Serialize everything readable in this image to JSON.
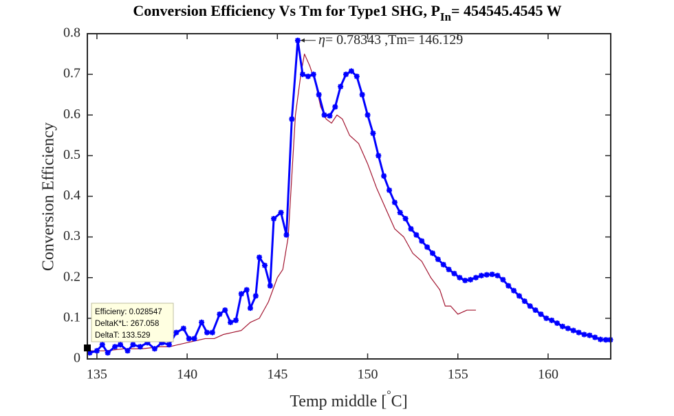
{
  "chart_data": {
    "type": "line",
    "title": "Conversion Efficiency Vs Tm for Type1 SHG, P",
    "title_subscript": "In",
    "title_suffix": "= 454545.4545 W",
    "x_label": "Temp middle [",
    "x_label_superscript": "°",
    "x_label_suffix": "C]",
    "y_label": "Conversion Efficiency",
    "xlim": [
      134.47,
      163.47
    ],
    "xticks": [
      135,
      140,
      145,
      150,
      155,
      160
    ],
    "ylim": [
      0,
      0.8
    ],
    "yticks": [
      0,
      0.1,
      0.2,
      0.3,
      0.4,
      0.5,
      0.6,
      0.7,
      0.8
    ],
    "series": [
      {
        "color": "#0000ff",
        "x": [
          134.6,
          135.0,
          135.3,
          135.6,
          136.0,
          136.3,
          136.7,
          137.0,
          137.4,
          137.8,
          138.2,
          138.6,
          139.0,
          139.4,
          139.8,
          140.1,
          140.4,
          140.8,
          141.1,
          141.4,
          141.8,
          142.1,
          142.4,
          142.7,
          143.0,
          143.3,
          143.5,
          143.8,
          144.0,
          144.3,
          144.6,
          144.8,
          145.2,
          145.5,
          145.8,
          146.129,
          146.4,
          146.7,
          147.0,
          147.3,
          147.6,
          147.9,
          148.2,
          148.5,
          148.8,
          149.1,
          149.4,
          149.7,
          150.0,
          150.3,
          150.6,
          150.9,
          151.2,
          151.5,
          151.8,
          152.1,
          152.4,
          152.7,
          153.0,
          153.3,
          153.6,
          153.9,
          154.2,
          154.5,
          154.8,
          155.1,
          155.4,
          155.7,
          156.0,
          156.3,
          156.6,
          156.9,
          157.2,
          157.5,
          157.8,
          158.1,
          158.4,
          158.7,
          159.0,
          159.3,
          159.6,
          159.9,
          160.2,
          160.5,
          160.8,
          161.1,
          161.4,
          161.7,
          162.0,
          162.3,
          162.6,
          162.9,
          163.2,
          163.45
        ],
        "values": [
          0.015,
          0.02,
          0.035,
          0.015,
          0.03,
          0.035,
          0.02,
          0.035,
          0.03,
          0.04,
          0.025,
          0.04,
          0.035,
          0.065,
          0.075,
          0.05,
          0.05,
          0.09,
          0.065,
          0.065,
          0.11,
          0.12,
          0.09,
          0.095,
          0.16,
          0.17,
          0.125,
          0.155,
          0.25,
          0.23,
          0.18,
          0.345,
          0.36,
          0.305,
          0.59,
          0.78343,
          0.7,
          0.695,
          0.7,
          0.65,
          0.6,
          0.598,
          0.62,
          0.67,
          0.7,
          0.708,
          0.695,
          0.65,
          0.6,
          0.555,
          0.5,
          0.45,
          0.415,
          0.385,
          0.36,
          0.345,
          0.32,
          0.305,
          0.29,
          0.275,
          0.26,
          0.245,
          0.232,
          0.22,
          0.21,
          0.2,
          0.193,
          0.195,
          0.2,
          0.205,
          0.207,
          0.208,
          0.205,
          0.195,
          0.18,
          0.168,
          0.155,
          0.142,
          0.13,
          0.12,
          0.11,
          0.1,
          0.095,
          0.088,
          0.08,
          0.075,
          0.07,
          0.065,
          0.06,
          0.058,
          0.053,
          0.048,
          0.047,
          0.047
        ]
      },
      {
        "color": "#a2142f",
        "x": [
          134.6,
          135.5,
          136.5,
          137.5,
          138.5,
          139.0,
          139.5,
          140.0,
          140.5,
          141.0,
          141.5,
          142.0,
          142.5,
          143.0,
          143.5,
          144.0,
          144.5,
          145.0,
          145.3,
          145.6,
          145.8,
          146.0,
          146.3,
          146.5,
          146.8,
          147.1,
          147.4,
          147.7,
          148.0,
          148.3,
          148.6,
          149.0,
          149.5,
          150.0,
          150.5,
          151.0,
          151.5,
          152.0,
          152.5,
          153.0,
          153.5,
          154.0,
          154.3,
          154.6,
          155.0,
          155.5,
          156.0
        ],
        "values": [
          0.02,
          0.02,
          0.025,
          0.025,
          0.03,
          0.03,
          0.035,
          0.04,
          0.045,
          0.05,
          0.05,
          0.06,
          0.065,
          0.07,
          0.09,
          0.1,
          0.14,
          0.2,
          0.22,
          0.3,
          0.45,
          0.6,
          0.7,
          0.75,
          0.72,
          0.68,
          0.62,
          0.59,
          0.58,
          0.6,
          0.59,
          0.55,
          0.53,
          0.48,
          0.42,
          0.37,
          0.32,
          0.3,
          0.26,
          0.24,
          0.2,
          0.17,
          0.13,
          0.13,
          0.11,
          0.12,
          0.12
        ]
      }
    ],
    "annotation": {
      "symbol": "η",
      "text": "= 0.78343 ,Tm= 146.129",
      "x": 146.129,
      "y": 0.78343
    },
    "datatip": [
      "Efficieny: 0.028547",
      "DeltaK*L: 267.058",
      "DeltaT: 133.529"
    ]
  }
}
